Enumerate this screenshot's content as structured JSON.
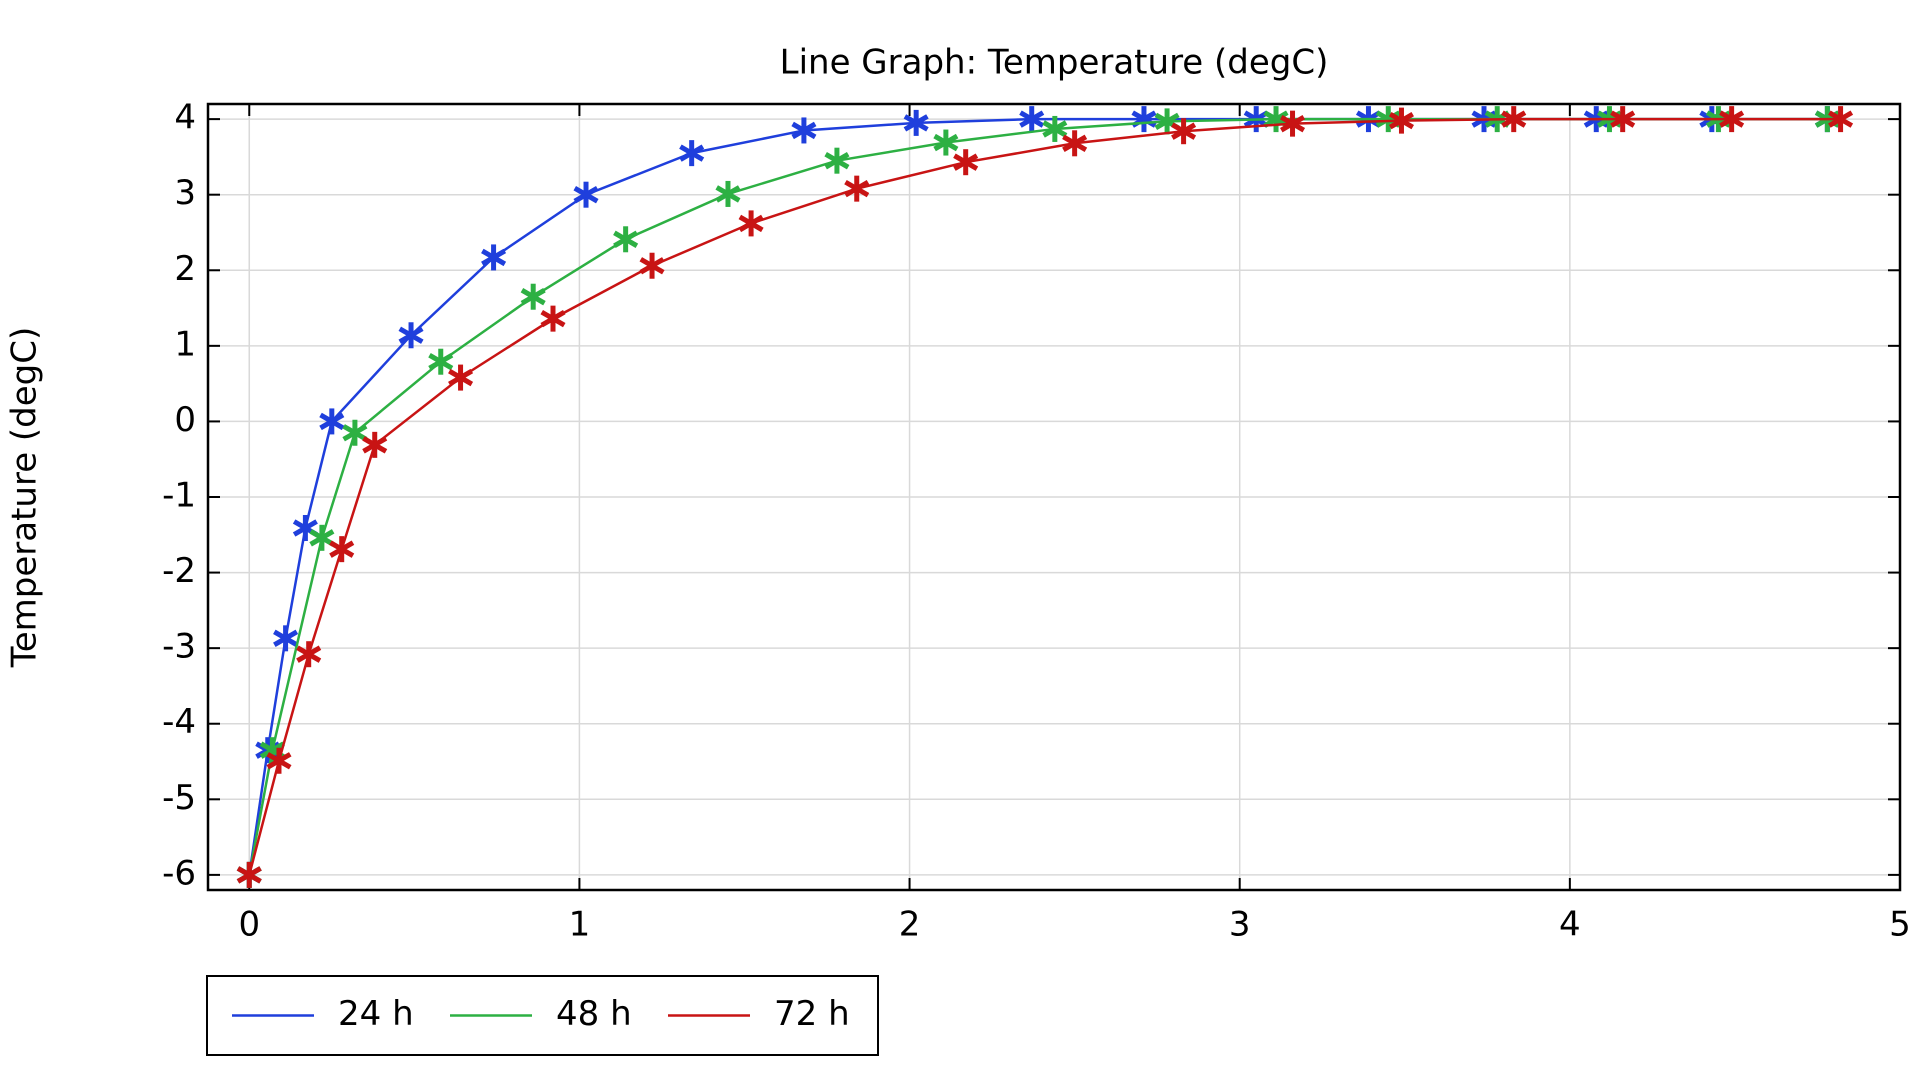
{
  "chart_data": {
    "type": "line",
    "title": "Line Graph: Temperature (degC)",
    "y_label": "Temperature (degC)",
    "xlim": [
      -0.125,
      5
    ],
    "ylim": [
      -6.2,
      4.2
    ],
    "xticks": [
      0,
      1,
      2,
      3,
      4,
      5
    ],
    "yticks": [
      -6,
      -5,
      -4,
      -3,
      -2,
      -1,
      0,
      1,
      2,
      3,
      4
    ],
    "grid": true,
    "legend": "bottom-left",
    "series": [
      {
        "name": "24 h",
        "color": "#1f3fdc",
        "x": [
          0,
          0.056,
          0.11,
          0.17,
          0.25,
          0.49,
          0.74,
          1.02,
          1.34,
          1.68,
          2.02,
          2.37,
          2.71,
          3.05,
          3.39,
          3.74,
          4.08,
          4.43,
          4.78
        ],
        "values": [
          -6,
          -4.35,
          -2.87,
          -1.41,
          0,
          1.14,
          2.17,
          3.0,
          3.55,
          3.85,
          3.95,
          4,
          4,
          4,
          4,
          4,
          4,
          4,
          4
        ]
      },
      {
        "name": "48 h",
        "color": "#2db043",
        "x": [
          0,
          0.07,
          0.22,
          0.32,
          0.58,
          0.86,
          1.14,
          1.45,
          1.78,
          2.11,
          2.44,
          2.78,
          3.11,
          3.45,
          3.78,
          4.12,
          4.45,
          4.78
        ],
        "values": [
          -6,
          -4.35,
          -1.54,
          -0.15,
          0.79,
          1.65,
          2.41,
          3.01,
          3.45,
          3.69,
          3.87,
          3.97,
          4,
          4,
          4,
          4,
          4,
          4
        ]
      },
      {
        "name": "72 h",
        "color": "#c81414",
        "x": [
          0,
          0.09,
          0.18,
          0.28,
          0.38,
          0.64,
          0.92,
          1.22,
          1.52,
          1.84,
          2.17,
          2.5,
          2.83,
          3.16,
          3.49,
          3.83,
          4.16,
          4.49,
          4.82
        ],
        "values": [
          -6,
          -4.49,
          -3.08,
          -1.69,
          -0.31,
          0.58,
          1.36,
          2.06,
          2.62,
          3.08,
          3.43,
          3.68,
          3.84,
          3.94,
          3.98,
          4,
          4,
          4,
          4
        ]
      }
    ]
  }
}
